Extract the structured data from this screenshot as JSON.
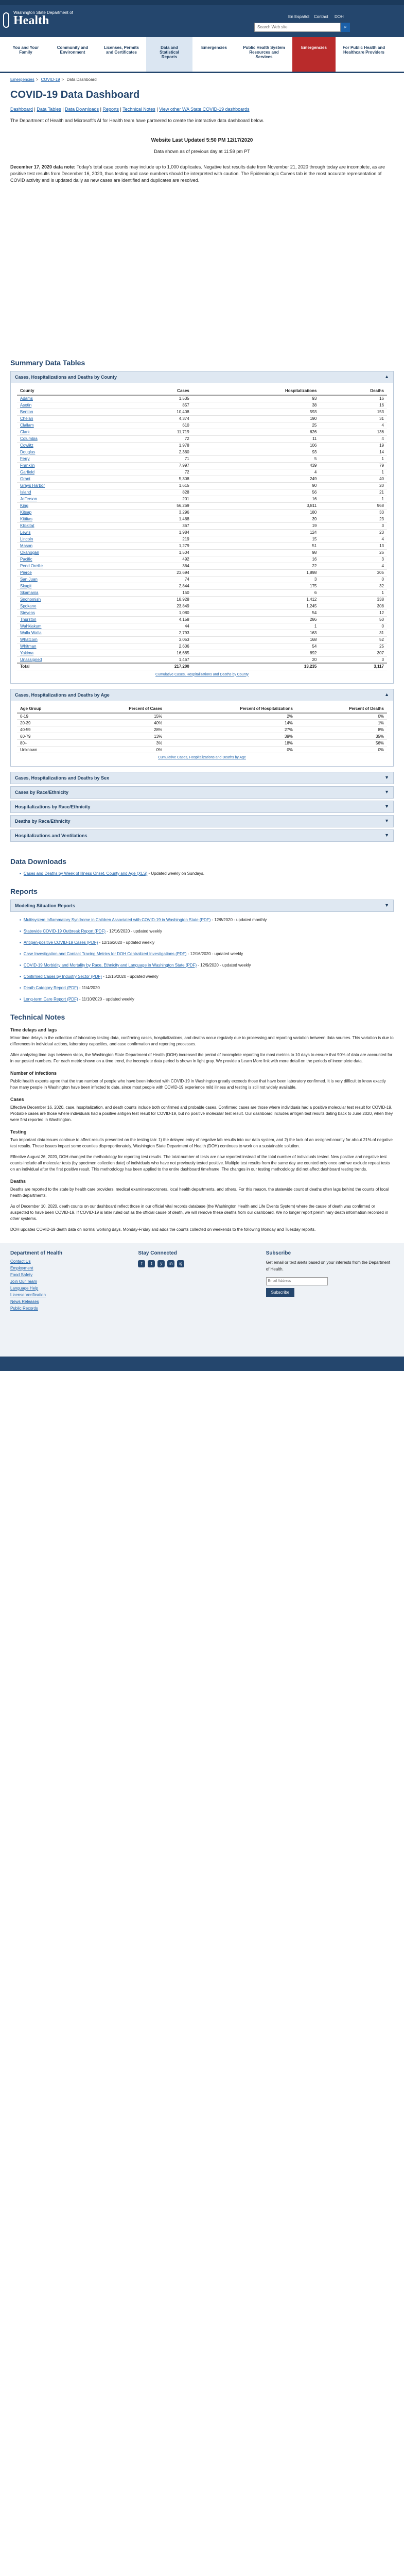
{
  "header": {
    "site_small": "Washington State Department of",
    "site_big": "Health",
    "search_placeholder": "Search Web site",
    "top_links": [
      "En Español",
      "Contact",
      "DOH"
    ]
  },
  "nav": {
    "items": [
      {
        "label": "You and Your Family",
        "active": false,
        "highlight": false
      },
      {
        "label": "Community and Environment",
        "active": false,
        "highlight": false
      },
      {
        "label": "Licenses, Permits and Certificates",
        "active": false,
        "highlight": false
      },
      {
        "label": "Data and Statistical Reports",
        "active": true,
        "highlight": false
      },
      {
        "label": "Emergencies",
        "active": false,
        "highlight": false
      },
      {
        "label": "Public Health System Resources and Services",
        "active": false,
        "highlight": false
      },
      {
        "label": "Emergencies",
        "active": false,
        "highlight": true
      },
      {
        "label": "For Public Health and Healthcare Providers",
        "active": false,
        "highlight": false
      }
    ]
  },
  "breadcrumb": [
    "Emergencies",
    "COVID-19",
    "Data Dashboard"
  ],
  "page": {
    "title": "COVID-19 Data Dashboard",
    "links_line": [
      "Dashboard",
      "Data Tables",
      "Data Downloads",
      "Reports",
      "Technical Notes",
      "View other WA State COVID-19 dashboards"
    ],
    "intro": "The Department of Health and Microsoft's AI for Health team have partnered to create the interactive data dashboard below.",
    "last_updated": "Website Last Updated 5:50 PM 12/17/2020",
    "data_shown": "Data shown as of previous day at 11:59 pm PT",
    "notice_date": "December 17, 2020 data note:",
    "notice_text": " Today's total case counts may include up to 1,000 duplicates. Negative test results date from November 21, 2020 through today are incomplete, as are positive test results from December 16, 2020, thus testing and case numbers should be interpreted with caution. The Epidemiologic Curves tab is the most accurate representation of COVID activity and is updated daily as new cases are identified and duplicates are resolved."
  },
  "summary": {
    "title": "Summary Data Tables",
    "county_table": {
      "heading": "Cases, Hospitalizations and Deaths by County",
      "columns": [
        "County",
        "Cases",
        "Hospitalizations",
        "Deaths"
      ],
      "rows": [
        [
          "Adams",
          "1,535",
          "93",
          "16"
        ],
        [
          "Asotin",
          "857",
          "38",
          "16"
        ],
        [
          "Benton",
          "10,408",
          "593",
          "153"
        ],
        [
          "Chelan",
          "4,374",
          "190",
          "31"
        ],
        [
          "Clallam",
          "610",
          "25",
          "4"
        ],
        [
          "Clark",
          "11,719",
          "626",
          "136"
        ],
        [
          "Columbia",
          "72",
          "11",
          "4"
        ],
        [
          "Cowlitz",
          "1,978",
          "106",
          "19"
        ],
        [
          "Douglas",
          "2,360",
          "93",
          "14"
        ],
        [
          "Ferry",
          "71",
          "5",
          "1"
        ],
        [
          "Franklin",
          "7,997",
          "439",
          "79"
        ],
        [
          "Garfield",
          "72",
          "4",
          "1"
        ],
        [
          "Grant",
          "5,308",
          "249",
          "40"
        ],
        [
          "Grays Harbor",
          "1,615",
          "90",
          "20"
        ],
        [
          "Island",
          "828",
          "56",
          "21"
        ],
        [
          "Jefferson",
          "201",
          "16",
          "1"
        ],
        [
          "King",
          "56,269",
          "3,811",
          "968"
        ],
        [
          "Kitsap",
          "3,296",
          "180",
          "33"
        ],
        [
          "Kittitas",
          "1,468",
          "39",
          "23"
        ],
        [
          "Klickitat",
          "367",
          "19",
          "3"
        ],
        [
          "Lewis",
          "1,984",
          "124",
          "23"
        ],
        [
          "Lincoln",
          "219",
          "15",
          "4"
        ],
        [
          "Mason",
          "1,279",
          "51",
          "13"
        ],
        [
          "Okanogan",
          "1,504",
          "98",
          "26"
        ],
        [
          "Pacific",
          "492",
          "16",
          "3"
        ],
        [
          "Pend Oreille",
          "364",
          "22",
          "4"
        ],
        [
          "Pierce",
          "23,694",
          "1,898",
          "305"
        ],
        [
          "San Juan",
          "74",
          "3",
          "0"
        ],
        [
          "Skagit",
          "2,844",
          "175",
          "32"
        ],
        [
          "Skamania",
          "150",
          "6",
          "1"
        ],
        [
          "Snohomish",
          "18,928",
          "1,412",
          "338"
        ],
        [
          "Spokane",
          "23,849",
          "1,245",
          "308"
        ],
        [
          "Stevens",
          "1,080",
          "54",
          "12"
        ],
        [
          "Thurston",
          "4,158",
          "286",
          "50"
        ],
        [
          "Wahkiakum",
          "44",
          "1",
          "0"
        ],
        [
          "Walla Walla",
          "2,793",
          "163",
          "31"
        ],
        [
          "Whatcom",
          "3,053",
          "168",
          "52"
        ],
        [
          "Whitman",
          "2,606",
          "54",
          "25"
        ],
        [
          "Yakima",
          "16,685",
          "892",
          "307"
        ],
        [
          "Unassigned",
          "1,467",
          "20",
          "3"
        ]
      ],
      "total": [
        "Total",
        "217,200",
        "13,235",
        "3,117"
      ],
      "caption": "Cumulative Cases, Hospitalizations and Deaths by County"
    },
    "age_table": {
      "heading": "Cases, Hospitalizations and Deaths by Age",
      "columns": [
        "Age Group",
        "Percent of Cases",
        "Percent of Hospitalizations",
        "Percent of Deaths"
      ],
      "rows": [
        [
          "0-19",
          "15%",
          "2%",
          "0%"
        ],
        [
          "20-39",
          "40%",
          "14%",
          "1%"
        ],
        [
          "40-59",
          "28%",
          "27%",
          "8%"
        ],
        [
          "60-79",
          "13%",
          "39%",
          "35%"
        ],
        [
          "80+",
          "3%",
          "18%",
          "56%"
        ],
        [
          "Unknown",
          "0%",
          "0%",
          "0%"
        ]
      ],
      "caption": "Cumulative Cases, Hospitalizations and Deaths by Age"
    },
    "collapsed": [
      "Cases, Hospitalizations and Deaths by Sex",
      "Cases by Race/Ethnicity",
      "Hospitalizations by Race/Ethnicity",
      "Deaths by Race/Ethnicity",
      "Hospitalizations and Ventilations"
    ]
  },
  "downloads": {
    "title": "Data Downloads",
    "items": [
      {
        "link": "Cases and Deaths by Week of Illness Onset, County and Age (XLS)",
        "note": " - Updated weekly on Sundays."
      }
    ]
  },
  "reports": {
    "title": "Reports",
    "accordion": "Modeling Situation Reports",
    "items": [
      {
        "link": "Multisystem Inflammatory Syndrome in Children Associated with COVID-19 in Washington State (PDF)",
        "note": " - 12/8/2020 - updated monthly"
      },
      {
        "link": "Statewide COVID-19 Outbreak Report (PDF)",
        "note": " - 12/16/2020 - updated weekly"
      },
      {
        "link": "Antigen-positive COVID-19 Cases (PDF)",
        "note": " - 12/16/2020 - updated weekly"
      },
      {
        "link": "Case Investigation and Contact Tracing Metrics for DOH Centralized Investigations (PDF)",
        "note": " - 12/16/2020 - updated weekly"
      },
      {
        "link": "COVID-19 Morbidity and Mortality by Race, Ethnicity and Language in Washington State (PDF)",
        "note": " - 12/9/2020 - updated weekly"
      },
      {
        "link": "Confirmed Cases by Industry Sector (PDF)",
        "note": " - 12/16/2020 - updated weekly"
      },
      {
        "link": "Death Category Report (PDF)",
        "note": " - 11/4/2020"
      },
      {
        "link": "Long-term Care Report (PDF)",
        "note": " - 11/10/2020 - updated weekly"
      }
    ]
  },
  "tech": {
    "title": "Technical Notes",
    "sections": [
      {
        "h": "Time delays and lags",
        "p": [
          "Minor time delays in the collection of laboratory testing data, confirming cases, hospitalizations, and deaths occur regularly due to processing and reporting variation between data sources. This variation is due to differences in individual actions, laboratory capacities, and case confirmation and reporting processes.",
          "After analyzing time lags between steps, the Washington State Department of Health (DOH) increased the period of incomplete reporting for most metrics to 10 days to ensure that 90% of data are accounted for in our posted numbers. For each metric shown on a time trend, the incomplete data period is shown in light gray. We provide a Learn More link with more detail on the periods of incomplete data."
        ]
      },
      {
        "h": "Number of infections",
        "p": [
          "Public health experts agree that the true number of people who have been infected with COVID-19 in Washington greatly exceeds those that have been laboratory confirmed. It is very difficult to know exactly how many people in Washington have been infected to date, since most people with COVID-19 experience mild illness and testing is still not widely available."
        ]
      },
      {
        "h": "Cases",
        "p": [
          "Effective December 16, 2020, case, hospitalization, and death counts include both confirmed and probable cases. Confirmed cases are those where individuals had a positive molecular test result for COVID-19. Probable cases are those where individuals had a positive antigen test result for COVID-19, but no positive molecular test result. Our dashboard includes antigen test results dating back to June 2020, when they were first reported in Washington."
        ]
      },
      {
        "h": "Testing",
        "p": [
          "Two important data issues continue to affect results presented on the testing tab: 1) the delayed entry of negative lab results into our data system, and 2) the lack of an assigned county for about 21% of negative test results. These issues impact some counties disproportionately. Washington State Department of Health (DOH) continues to work on a sustainable solution.",
          "Effective August 26, 2020, DOH changed the methodology for reporting test results. The total number of tests are now reported instead of the total number of individuals tested. New positive and negative test counts include all molecular tests (by specimen collection date) of individuals who have not previously tested positive. Multiple test results from the same day are counted only once and we exclude repeat tests on an individual after the first positive result. This methodology has been applied to the entire dashboard timeframe. The changes in our testing methodology did not affect dashboard testing trends."
        ]
      },
      {
        "h": "Deaths",
        "p": [
          "Deaths are reported to the state by health care providers, medical examiners/coroners, local health departments, and others. For this reason, the statewide count of deaths often lags behind the counts of local health departments.",
          "As of December 10, 2020, death counts on our dashboard reflect those in our official vital records database (the Washington Health and Life Events System) where the cause of death was confirmed or suspected to have been COVID-19. If COVID-19 is later ruled out as the official cause of death, we will remove these deaths from our dashboard. We no longer report preliminary death information recorded in other systems.",
          "DOH updates COVID-19 death data on normal working days. Monday-Friday and adds the counts collected on weekends to the following Monday and Tuesday reports."
        ]
      }
    ]
  },
  "footer": {
    "col1_title": "Department of Health",
    "col1_links": [
      "Contact Us",
      "Employment",
      "Food Safety",
      "Join Our Team",
      "Language Help",
      "License Verification",
      "News Releases",
      "Public Records"
    ],
    "col2_title": "Stay Connected",
    "social": [
      "f",
      "t",
      "y",
      "in",
      "ig"
    ],
    "col3_title": "Subscribe",
    "col3_text": "Get email or text alerts based on your interests from the Department of Health.",
    "email_placeholder": "Email Address",
    "subscribe_label": "Subscribe"
  }
}
